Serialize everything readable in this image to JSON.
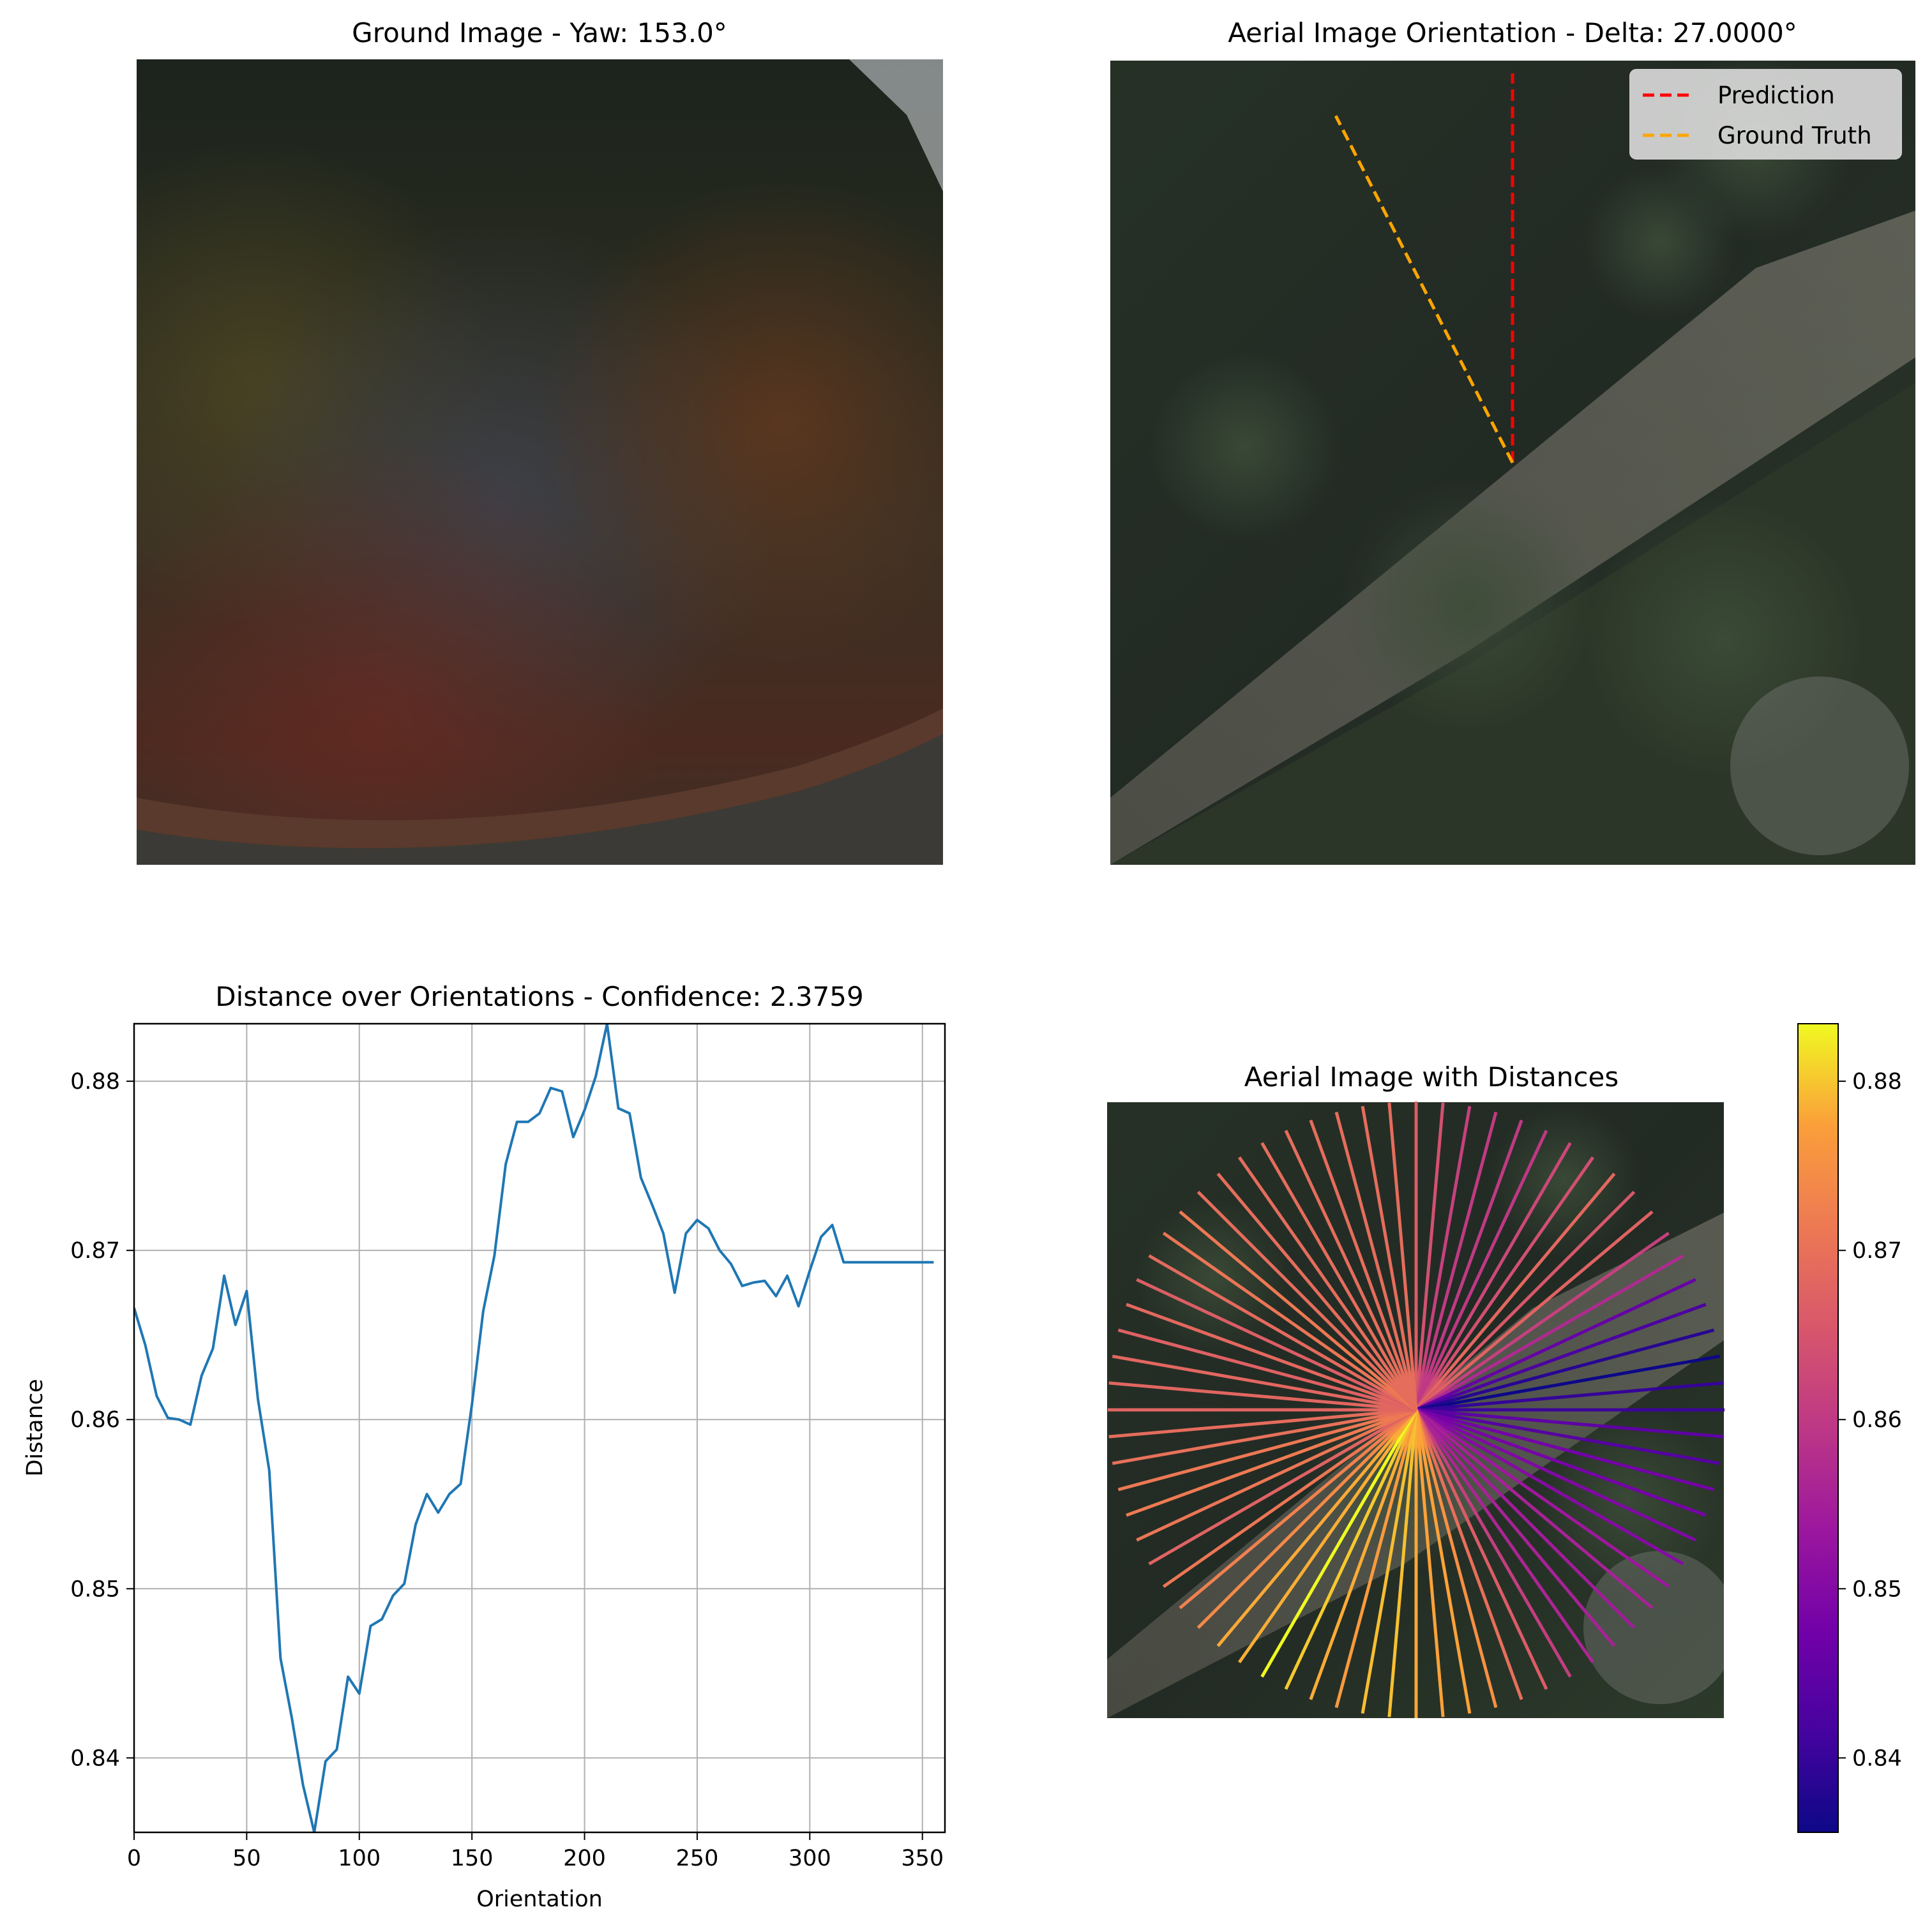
{
  "panels": {
    "ground": {
      "title": "Ground Image - Yaw: 153.0°"
    },
    "aerial": {
      "title": "Aerial Image Orientation - Delta: 27.0000°",
      "legend": [
        {
          "label": "Prediction",
          "color": "#ff0000"
        },
        {
          "label": "Ground Truth",
          "color": "#ffa500"
        }
      ],
      "prediction_angle_deg": 0,
      "ground_truth_angle_deg": -27
    },
    "radial": {
      "title": "Aerial Image with Distances",
      "colormap": "plasma"
    },
    "colorbar": {
      "min": 0.8356,
      "max": 0.8834,
      "ticks": [
        0.84,
        0.85,
        0.86,
        0.87,
        0.88
      ]
    }
  },
  "chart_data": {
    "type": "line",
    "title": "Distance over Orientations - Confidence: 2.3759",
    "xlabel": "Orientation",
    "ylabel": "Distance",
    "xlim": [
      0,
      360
    ],
    "ylim": [
      0.8356,
      0.8834
    ],
    "xticks": [
      0,
      50,
      100,
      150,
      200,
      250,
      300,
      350
    ],
    "yticks": [
      0.84,
      0.85,
      0.86,
      0.87,
      0.88
    ],
    "grid": true,
    "line_color": "#1f77b4",
    "x": [
      0,
      5,
      10,
      15,
      20,
      25,
      30,
      35,
      40,
      45,
      50,
      55,
      60,
      65,
      70,
      75,
      80,
      85,
      90,
      95,
      100,
      105,
      110,
      115,
      120,
      125,
      130,
      135,
      140,
      145,
      150,
      155,
      160,
      165,
      170,
      175,
      180,
      185,
      190,
      195,
      200,
      205,
      210,
      215,
      220,
      225,
      230,
      235,
      240,
      245,
      250,
      255,
      260,
      265,
      270,
      275,
      280,
      285,
      290,
      295,
      300,
      305,
      310,
      315,
      320,
      325,
      330,
      335,
      340,
      345,
      350,
      355
    ],
    "y": [
      0.8666,
      0.8644,
      0.8614,
      0.8601,
      0.86,
      0.8597,
      0.8626,
      0.8642,
      0.8685,
      0.8656,
      0.8676,
      0.8612,
      0.857,
      0.8459,
      0.8424,
      0.8384,
      0.8356,
      0.8398,
      0.8405,
      0.8448,
      0.8438,
      0.8478,
      0.8482,
      0.8496,
      0.8503,
      0.8538,
      0.8556,
      0.8545,
      0.8556,
      0.8562,
      0.8609,
      0.8664,
      0.8697,
      0.8751,
      0.8776,
      0.8776,
      0.8781,
      0.8796,
      0.8794,
      0.8767,
      0.8783,
      0.8803,
      0.8834,
      0.8784,
      0.8781,
      0.8743,
      0.8727,
      0.871,
      0.8675,
      0.871,
      0.8718,
      0.8713,
      0.87,
      0.8692,
      0.8679,
      0.8681,
      0.8682,
      0.8673,
      0.8685,
      0.8667,
      0.8688,
      0.8708,
      0.8715,
      0.8693,
      0.8693,
      0.8693,
      0.8693,
      0.8693,
      0.8693,
      0.8693,
      0.8693,
      0.8693
    ]
  }
}
